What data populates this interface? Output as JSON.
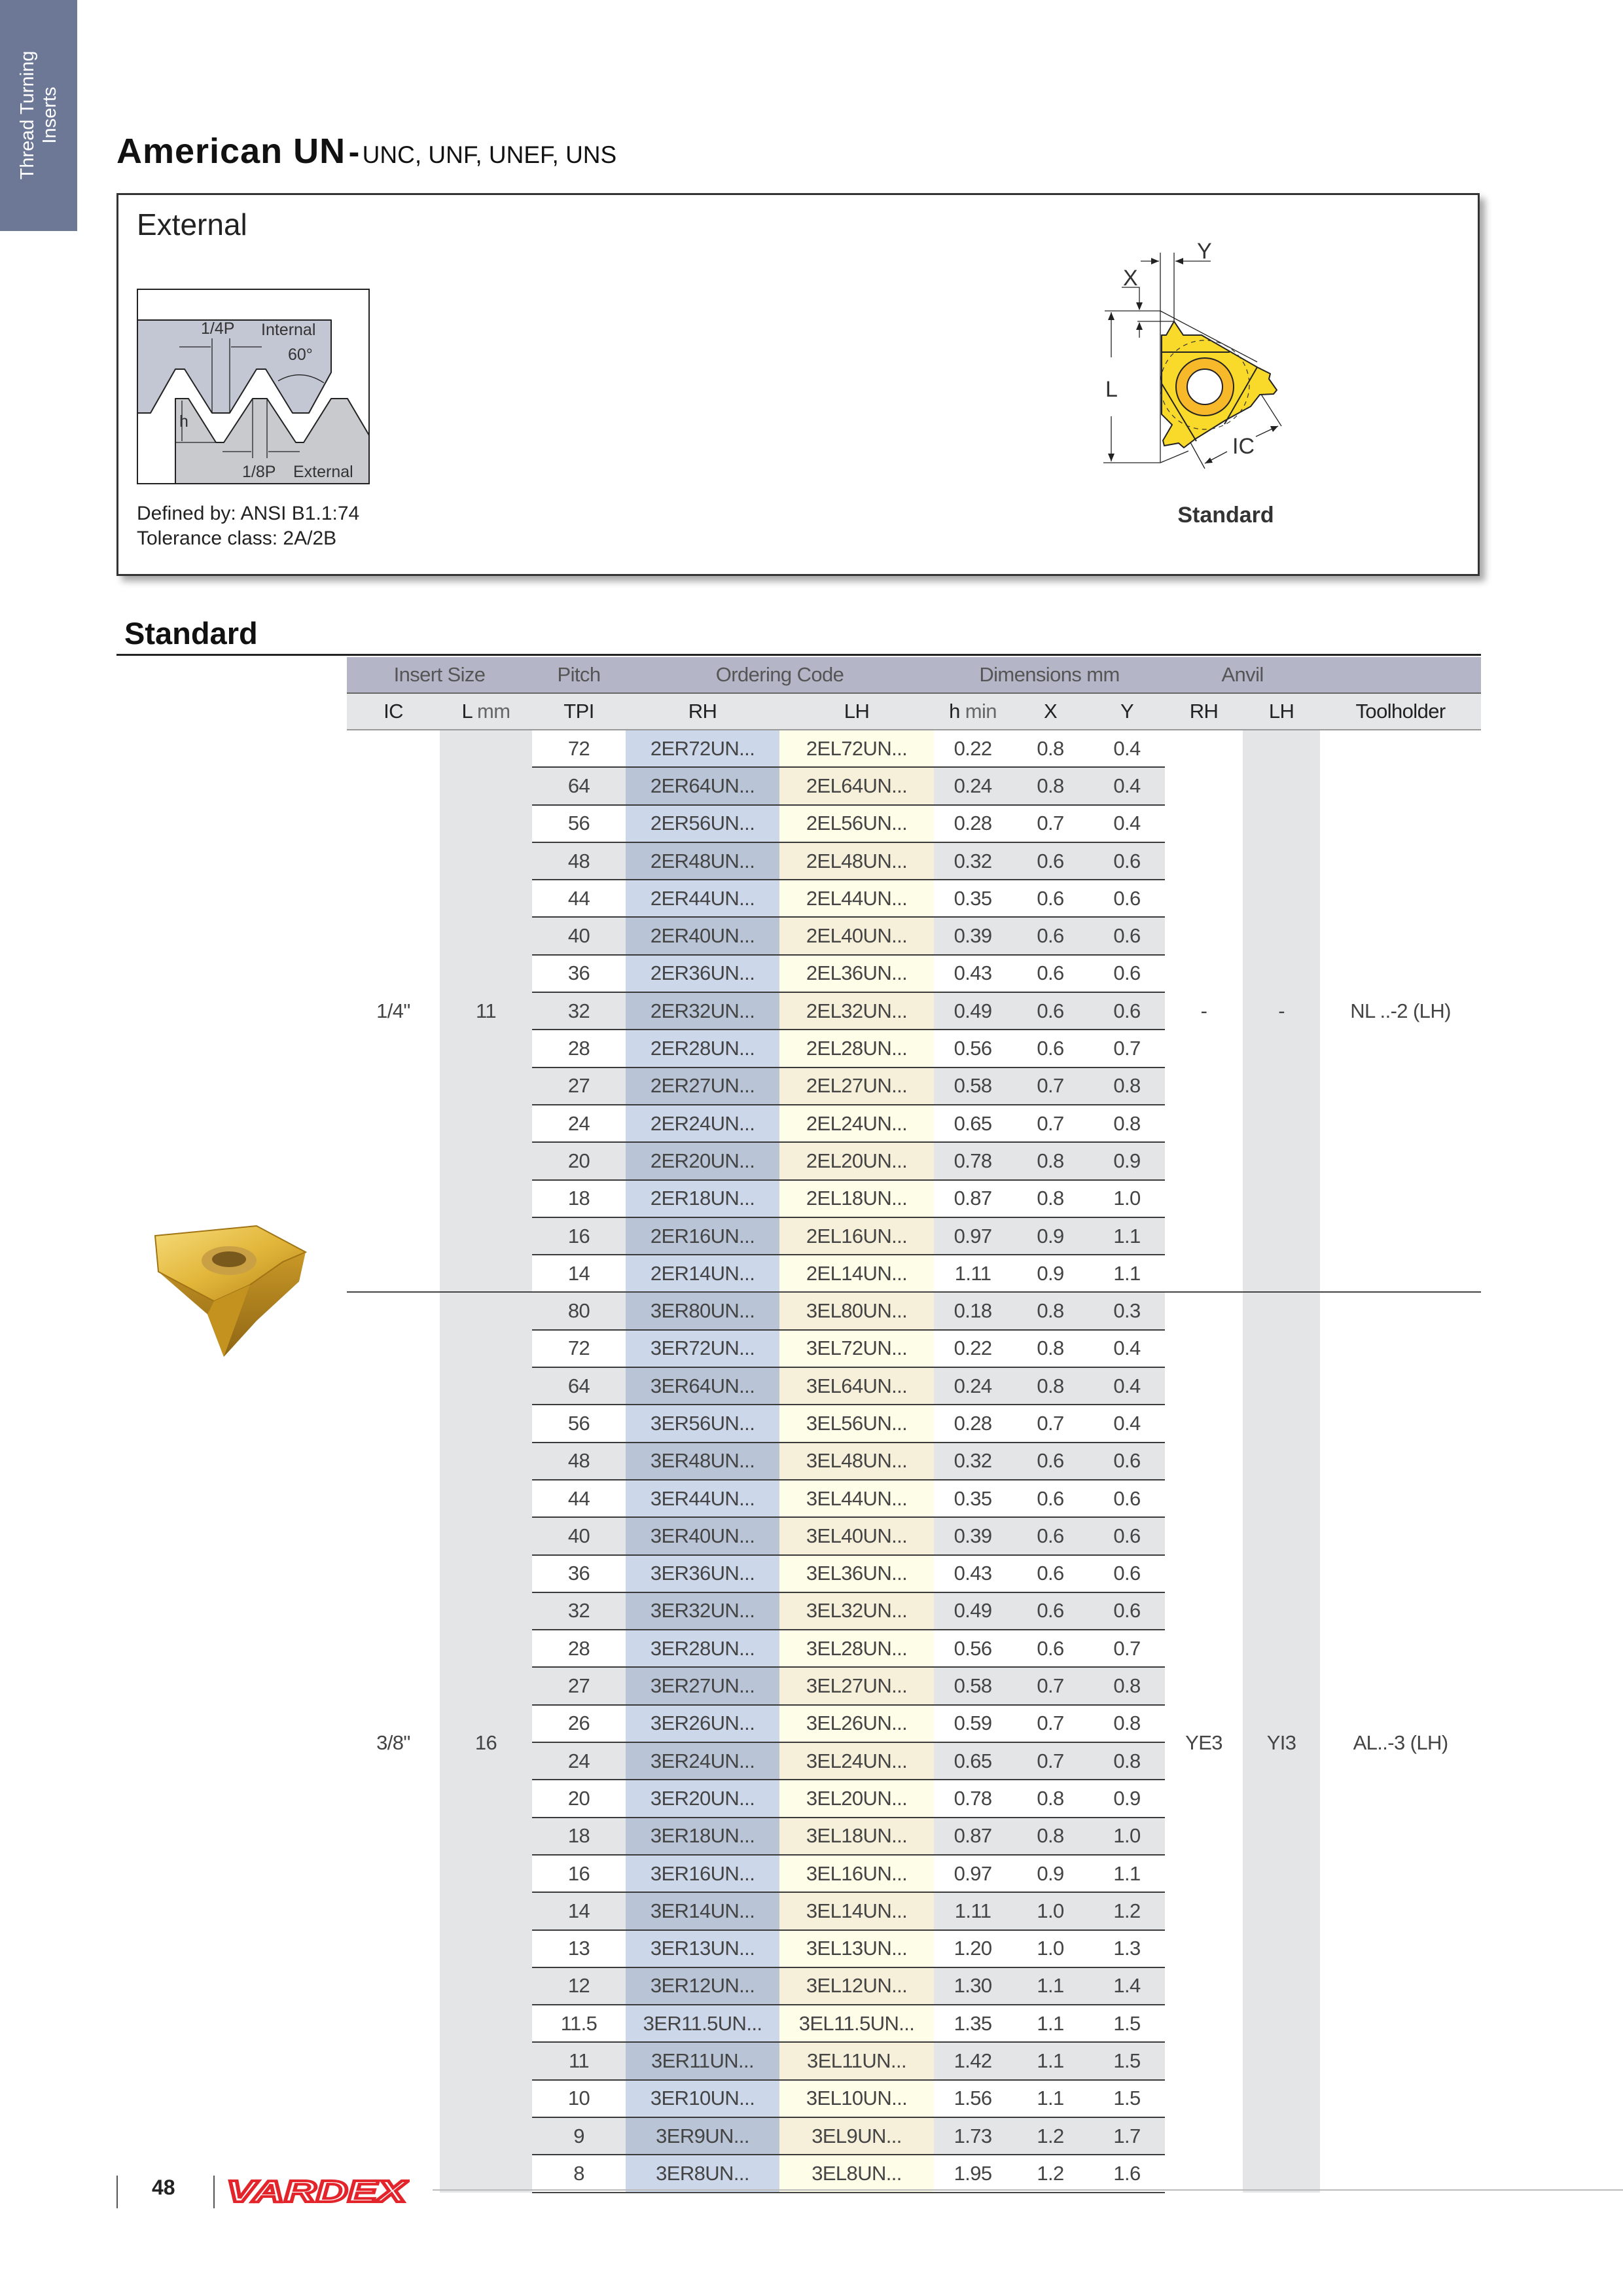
{
  "side_tab": {
    "line1": "Thread Turning",
    "line2": "Inserts"
  },
  "title": {
    "main": "American UN",
    "separator": "-",
    "subtitle": "UNC, UNF, UNEF, UNS"
  },
  "external_box": {
    "heading": "External",
    "thread_diagram": {
      "quarter_pitch": "1/4P",
      "internal": "Internal",
      "angle": "60°",
      "height": "h",
      "eighth_pitch": "1/8P",
      "external": "External"
    },
    "defined_by": "Defined by: ANSI B1.1:74",
    "tolerance": "Tolerance class: 2A/2B",
    "insert_diagram": {
      "x": "X",
      "y": "Y",
      "l": "L",
      "ic": "IC",
      "caption": "Standard"
    }
  },
  "colors": {
    "accent_tab": "#6d7896",
    "insert_yellow": "#f9d92a",
    "logo_red": "#e3242b"
  },
  "section_heading": "Standard",
  "table": {
    "header_groups": {
      "insert_size": "Insert Size",
      "pitch": "Pitch",
      "ordering_code": "Ordering Code",
      "dimensions": "Dimensions mm",
      "anvil": "Anvil"
    },
    "columns": {
      "ic": "IC",
      "l": "L",
      "l_unit": "mm",
      "tpi": "TPI",
      "rh": "RH",
      "lh": "LH",
      "h": "h",
      "h_sub": "min",
      "x": "X",
      "y": "Y",
      "anvil_rh": "RH",
      "anvil_lh": "LH",
      "toolholder": "Toolholder"
    },
    "groups": [
      {
        "ic": "1/4\"",
        "l_mm": "11",
        "anvil_rh": "-",
        "anvil_lh": "-",
        "toolholder": "NL ..-2 (LH)",
        "rows": [
          {
            "tpi": "72",
            "rh": "2ER72UN...",
            "lh": "2EL72UN...",
            "h_min": "0.22",
            "x": "0.8",
            "y": "0.4"
          },
          {
            "tpi": "64",
            "rh": "2ER64UN...",
            "lh": "2EL64UN...",
            "h_min": "0.24",
            "x": "0.8",
            "y": "0.4"
          },
          {
            "tpi": "56",
            "rh": "2ER56UN...",
            "lh": "2EL56UN...",
            "h_min": "0.28",
            "x": "0.7",
            "y": "0.4"
          },
          {
            "tpi": "48",
            "rh": "2ER48UN...",
            "lh": "2EL48UN...",
            "h_min": "0.32",
            "x": "0.6",
            "y": "0.6"
          },
          {
            "tpi": "44",
            "rh": "2ER44UN...",
            "lh": "2EL44UN...",
            "h_min": "0.35",
            "x": "0.6",
            "y": "0.6"
          },
          {
            "tpi": "40",
            "rh": "2ER40UN...",
            "lh": "2EL40UN...",
            "h_min": "0.39",
            "x": "0.6",
            "y": "0.6"
          },
          {
            "tpi": "36",
            "rh": "2ER36UN...",
            "lh": "2EL36UN...",
            "h_min": "0.43",
            "x": "0.6",
            "y": "0.6"
          },
          {
            "tpi": "32",
            "rh": "2ER32UN...",
            "lh": "2EL32UN...",
            "h_min": "0.49",
            "x": "0.6",
            "y": "0.6"
          },
          {
            "tpi": "28",
            "rh": "2ER28UN...",
            "lh": "2EL28UN...",
            "h_min": "0.56",
            "x": "0.6",
            "y": "0.7"
          },
          {
            "tpi": "27",
            "rh": "2ER27UN...",
            "lh": "2EL27UN...",
            "h_min": "0.58",
            "x": "0.7",
            "y": "0.8"
          },
          {
            "tpi": "24",
            "rh": "2ER24UN...",
            "lh": "2EL24UN...",
            "h_min": "0.65",
            "x": "0.7",
            "y": "0.8"
          },
          {
            "tpi": "20",
            "rh": "2ER20UN...",
            "lh": "2EL20UN...",
            "h_min": "0.78",
            "x": "0.8",
            "y": "0.9"
          },
          {
            "tpi": "18",
            "rh": "2ER18UN...",
            "lh": "2EL18UN...",
            "h_min": "0.87",
            "x": "0.8",
            "y": "1.0"
          },
          {
            "tpi": "16",
            "rh": "2ER16UN...",
            "lh": "2EL16UN...",
            "h_min": "0.97",
            "x": "0.9",
            "y": "1.1"
          },
          {
            "tpi": "14",
            "rh": "2ER14UN...",
            "lh": "2EL14UN...",
            "h_min": "1.11",
            "x": "0.9",
            "y": "1.1"
          }
        ]
      },
      {
        "ic": "3/8\"",
        "l_mm": "16",
        "anvil_rh": "YE3",
        "anvil_lh": "YI3",
        "toolholder": "AL..-3 (LH)",
        "rows": [
          {
            "tpi": "80",
            "rh": "3ER80UN...",
            "lh": "3EL80UN...",
            "h_min": "0.18",
            "x": "0.8",
            "y": "0.3"
          },
          {
            "tpi": "72",
            "rh": "3ER72UN...",
            "lh": "3EL72UN...",
            "h_min": "0.22",
            "x": "0.8",
            "y": "0.4"
          },
          {
            "tpi": "64",
            "rh": "3ER64UN...",
            "lh": "3EL64UN...",
            "h_min": "0.24",
            "x": "0.8",
            "y": "0.4"
          },
          {
            "tpi": "56",
            "rh": "3ER56UN...",
            "lh": "3EL56UN...",
            "h_min": "0.28",
            "x": "0.7",
            "y": "0.4"
          },
          {
            "tpi": "48",
            "rh": "3ER48UN...",
            "lh": "3EL48UN...",
            "h_min": "0.32",
            "x": "0.6",
            "y": "0.6"
          },
          {
            "tpi": "44",
            "rh": "3ER44UN...",
            "lh": "3EL44UN...",
            "h_min": "0.35",
            "x": "0.6",
            "y": "0.6"
          },
          {
            "tpi": "40",
            "rh": "3ER40UN...",
            "lh": "3EL40UN...",
            "h_min": "0.39",
            "x": "0.6",
            "y": "0.6"
          },
          {
            "tpi": "36",
            "rh": "3ER36UN...",
            "lh": "3EL36UN...",
            "h_min": "0.43",
            "x": "0.6",
            "y": "0.6"
          },
          {
            "tpi": "32",
            "rh": "3ER32UN...",
            "lh": "3EL32UN...",
            "h_min": "0.49",
            "x": "0.6",
            "y": "0.6"
          },
          {
            "tpi": "28",
            "rh": "3ER28UN...",
            "lh": "3EL28UN...",
            "h_min": "0.56",
            "x": "0.6",
            "y": "0.7"
          },
          {
            "tpi": "27",
            "rh": "3ER27UN...",
            "lh": "3EL27UN...",
            "h_min": "0.58",
            "x": "0.7",
            "y": "0.8"
          },
          {
            "tpi": "26",
            "rh": "3ER26UN...",
            "lh": "3EL26UN...",
            "h_min": "0.59",
            "x": "0.7",
            "y": "0.8"
          },
          {
            "tpi": "24",
            "rh": "3ER24UN...",
            "lh": "3EL24UN...",
            "h_min": "0.65",
            "x": "0.7",
            "y": "0.8"
          },
          {
            "tpi": "20",
            "rh": "3ER20UN...",
            "lh": "3EL20UN...",
            "h_min": "0.78",
            "x": "0.8",
            "y": "0.9"
          },
          {
            "tpi": "18",
            "rh": "3ER18UN...",
            "lh": "3EL18UN...",
            "h_min": "0.87",
            "x": "0.8",
            "y": "1.0"
          },
          {
            "tpi": "16",
            "rh": "3ER16UN...",
            "lh": "3EL16UN...",
            "h_min": "0.97",
            "x": "0.9",
            "y": "1.1"
          },
          {
            "tpi": "14",
            "rh": "3ER14UN...",
            "lh": "3EL14UN...",
            "h_min": "1.11",
            "x": "1.0",
            "y": "1.2"
          },
          {
            "tpi": "13",
            "rh": "3ER13UN...",
            "lh": "3EL13UN...",
            "h_min": "1.20",
            "x": "1.0",
            "y": "1.3"
          },
          {
            "tpi": "12",
            "rh": "3ER12UN...",
            "lh": "3EL12UN...",
            "h_min": "1.30",
            "x": "1.1",
            "y": "1.4"
          },
          {
            "tpi": "11.5",
            "rh": "3ER11.5UN...",
            "lh": "3EL11.5UN...",
            "h_min": "1.35",
            "x": "1.1",
            "y": "1.5"
          },
          {
            "tpi": "11",
            "rh": "3ER11UN...",
            "lh": "3EL11UN...",
            "h_min": "1.42",
            "x": "1.1",
            "y": "1.5"
          },
          {
            "tpi": "10",
            "rh": "3ER10UN...",
            "lh": "3EL10UN...",
            "h_min": "1.56",
            "x": "1.1",
            "y": "1.5"
          },
          {
            "tpi": "9",
            "rh": "3ER9UN...",
            "lh": "3EL9UN...",
            "h_min": "1.73",
            "x": "1.2",
            "y": "1.7"
          },
          {
            "tpi": "8",
            "rh": "3ER8UN...",
            "lh": "3EL8UN...",
            "h_min": "1.95",
            "x": "1.2",
            "y": "1.6"
          }
        ]
      }
    ]
  },
  "footer": {
    "page_number": "48",
    "logo": "VARDEX"
  }
}
